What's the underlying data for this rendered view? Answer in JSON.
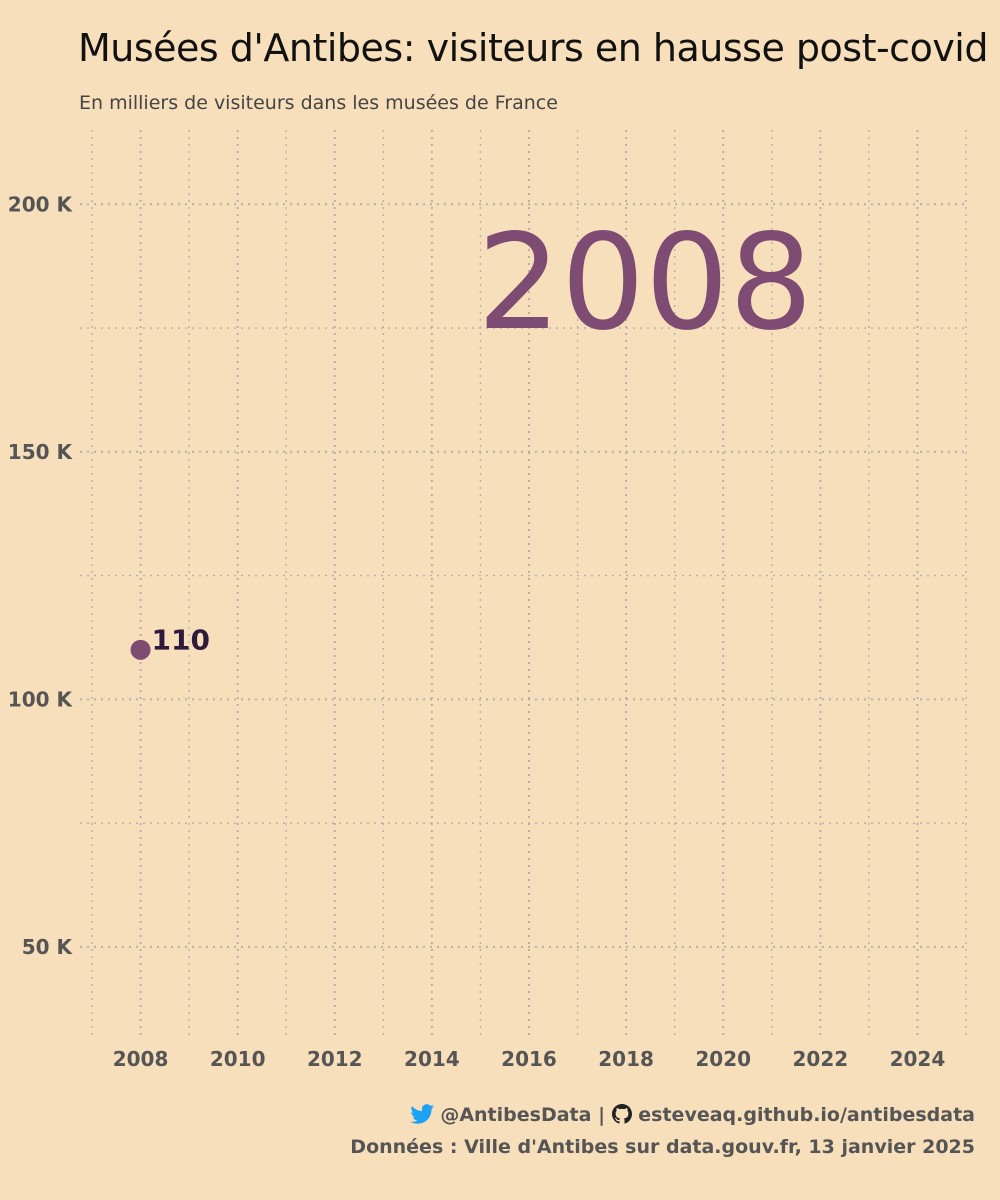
{
  "header": {
    "title": "Musées d'Antibes: visiteurs en hausse post-covid",
    "subtitle": "En milliers de visiteurs dans les musées de France"
  },
  "caption": {
    "twitter_icon": "twitter-bird-icon",
    "twitter_handle": "@AntibesData",
    "separator": "|",
    "github_icon": "github-icon",
    "github_url": "esteveaq.github.io/antibesdata",
    "source": "Données : Ville d'Antibes sur data.gouv.fr, 13 janvier 2025"
  },
  "colors": {
    "background": "#f8dfbc",
    "point": "#7e4b72",
    "year_label": "#7e4b72",
    "value_label": "#2e1a3d",
    "grid": "#b5b0a8",
    "tick_text": "#555555",
    "twitter": "#1da1f2"
  },
  "chart_data": {
    "type": "scatter",
    "title": "Musées d'Antibes: visiteurs en hausse post-covid",
    "subtitle": "En milliers de visiteurs dans les musées de France",
    "current_year_label": "2008",
    "points": [
      {
        "x": 2008,
        "y": 110000,
        "label": "110"
      }
    ],
    "xlim": [
      2007,
      2025
    ],
    "ylim": [
      32000,
      215000
    ],
    "x_ticks": [
      2008,
      2010,
      2012,
      2014,
      2016,
      2018,
      2020,
      2022,
      2024
    ],
    "x_tick_labels": [
      "2008",
      "2010",
      "2012",
      "2014",
      "2016",
      "2018",
      "2020",
      "2022",
      "2024"
    ],
    "y_ticks": [
      50000,
      100000,
      150000,
      200000
    ],
    "y_tick_labels": [
      "50 K",
      "100 K",
      "150 K",
      "200 K"
    ],
    "grid": true,
    "grid_style": "dotted"
  }
}
